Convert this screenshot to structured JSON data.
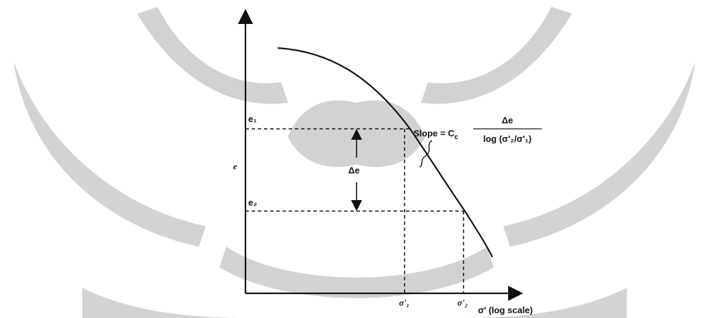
{
  "labels": {
    "y_axis": "e",
    "e1": "e₁",
    "e2": "e₂",
    "delta_e": "Δe",
    "slope": "Slope = C",
    "slope_sub": "c",
    "numerator": "Δe",
    "denominator": "log (σ'₂/σ'₁)",
    "sigma1": "σ'₁",
    "sigma2": "σ'₂",
    "x_axis": "σ' (log scale)"
  }
}
